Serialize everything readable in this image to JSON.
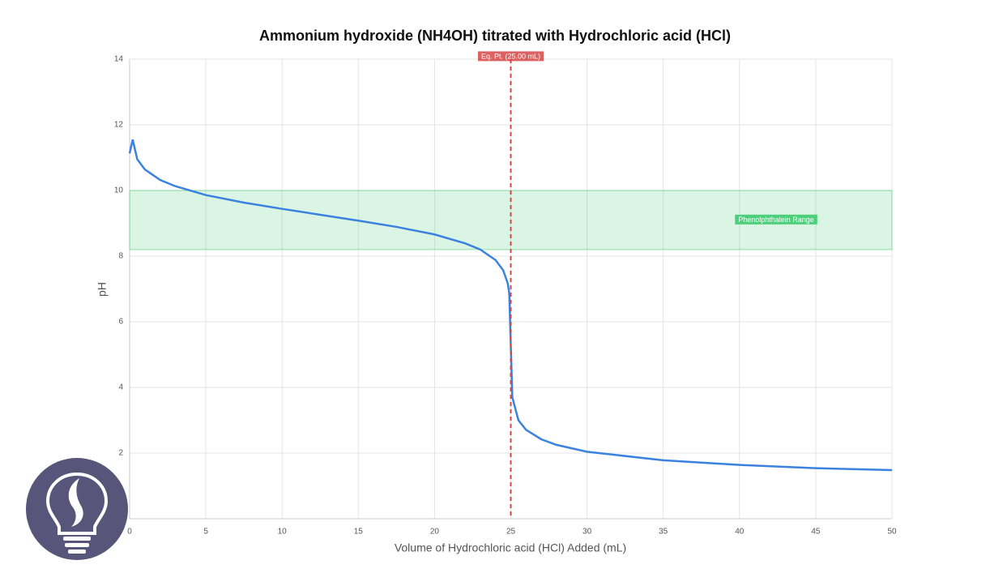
{
  "chart_data": {
    "type": "line",
    "title": "Ammonium hydroxide (NH4OH) titrated with Hydrochloric acid (HCl)",
    "x_label": "Volume of Hydrochloric acid (HCl) Added (mL)",
    "y_label": "pH",
    "x": [
      0,
      0.2,
      0.5,
      1,
      2,
      3,
      5,
      7.5,
      10,
      12.5,
      15,
      17.5,
      20,
      22,
      23,
      24,
      24.5,
      24.8,
      24.9,
      25,
      25.1,
      25.5,
      26,
      27,
      28,
      30,
      35,
      40,
      45,
      50
    ],
    "values": [
      11.13,
      11.55,
      10.95,
      10.64,
      10.32,
      10.13,
      9.86,
      9.63,
      9.44,
      9.26,
      9.08,
      8.89,
      8.66,
      8.39,
      8.2,
      7.88,
      7.57,
      7.17,
      6.86,
      5.28,
      3.7,
      3.0,
      2.71,
      2.42,
      2.25,
      2.04,
      1.78,
      1.64,
      1.54,
      1.48
    ],
    "color": "#3b82e0",
    "xlim": [
      0,
      50
    ],
    "xticks": [
      0,
      5,
      10,
      15,
      20,
      25,
      30,
      35,
      40,
      45,
      50
    ],
    "ylim": [
      0,
      14
    ],
    "yticks": [
      0,
      2,
      4,
      6,
      8,
      10,
      12,
      14
    ],
    "grid": true,
    "bands": [
      {
        "y0": 8.2,
        "y1": 10,
        "label": "Phenolphthalein Range",
        "color": "#4ccf7a"
      }
    ],
    "vlines": [
      {
        "x": 25,
        "label": "Eq. Pt. (25.00 mL)",
        "color": "#d64545"
      }
    ]
  }
}
